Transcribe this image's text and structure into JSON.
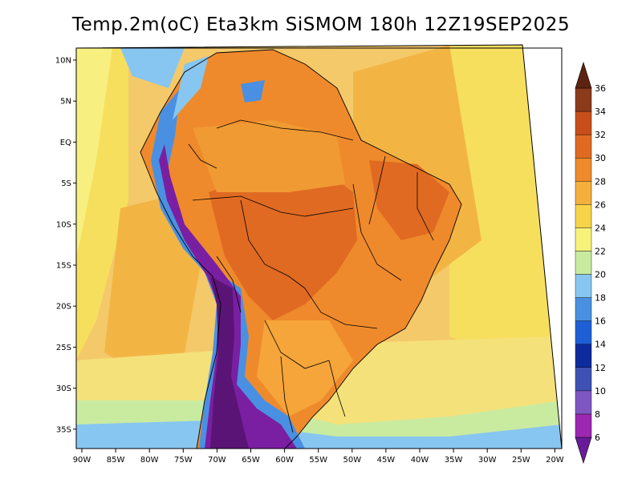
{
  "title": "Temp.2m(oC) Eta3km SiSMOM 180h 12Z19SEP2025",
  "lat_labels": [
    "10N",
    "5N",
    "EQ",
    "5S",
    "10S",
    "15S",
    "20S",
    "25S",
    "30S",
    "35S"
  ],
  "lon_labels": [
    "90W",
    "85W",
    "80W",
    "75W",
    "70W",
    "65W",
    "60W",
    "55W",
    "50W",
    "45W",
    "40W",
    "35W",
    "30W",
    "25W",
    "20W"
  ],
  "colorbar": {
    "labels": [
      "6",
      "8",
      "10",
      "12",
      "14",
      "16",
      "18",
      "20",
      "22",
      "24",
      "26",
      "28",
      "30",
      "32",
      "34",
      "36"
    ],
    "colors": [
      "#6a1b9a",
      "#9c27b0",
      "#7e57c2",
      "#3f51b5",
      "#0d2b9c",
      "#1e5fd6",
      "#4a90e2",
      "#87c6f0",
      "#c9eba0",
      "#f6f27a",
      "#f7d34a",
      "#f4b03c",
      "#ef8a2c",
      "#e06a22",
      "#c84f1b",
      "#8b3a1a",
      "#5c2410"
    ]
  },
  "map_colors": {
    "ocean": "#f4c96a",
    "ocean_warm": "#f7e06a",
    "land_warm": "#ef8a2c",
    "land_hot": "#e06a22",
    "andes_cold": "#7a1fa2",
    "andes_cool": "#3f51b5",
    "south_cool": "#87c6f0"
  }
}
